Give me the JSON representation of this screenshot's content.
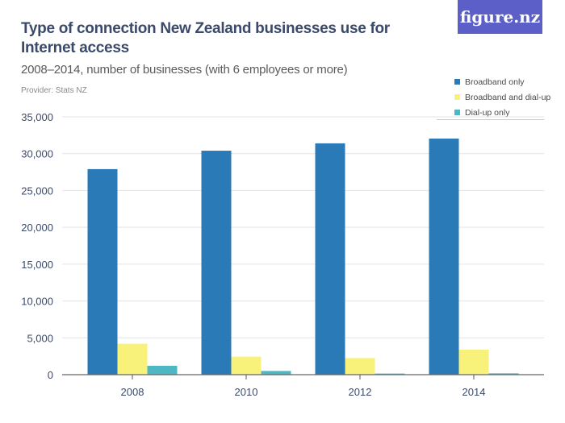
{
  "header": {
    "title": "Type of connection New Zealand businesses use for Internet access",
    "subtitle": "2008–2014, number of businesses (with 6 employees or more)",
    "provider": "Provider: Stats NZ",
    "logo": "figure.nz"
  },
  "legend": [
    {
      "label": "Broadband only",
      "color": "#2a7ab7"
    },
    {
      "label": "Broadband and dial-up",
      "color": "#f9f27a"
    },
    {
      "label": "Dial-up only",
      "color": "#4db8c4"
    }
  ],
  "chart_data": {
    "type": "bar",
    "title": "Type of connection New Zealand businesses use for Internet access",
    "subtitle": "2008–2014, number of businesses (with 6 employees or more)",
    "xlabel": "",
    "ylabel": "",
    "categories": [
      "2008",
      "2010",
      "2012",
      "2014"
    ],
    "series": [
      {
        "name": "Broadband only",
        "color": "#2a7ab7",
        "values": [
          27900,
          30400,
          31400,
          32050
        ]
      },
      {
        "name": "Broadband and dial-up",
        "color": "#f9f27a",
        "values": [
          4200,
          2450,
          2250,
          3400
        ]
      },
      {
        "name": "Dial-up only",
        "color": "#4db8c4",
        "values": [
          1200,
          500,
          150,
          180
        ]
      }
    ],
    "ylim": [
      0,
      35000
    ],
    "yticks": [
      0,
      5000,
      10000,
      15000,
      20000,
      25000,
      30000,
      35000
    ],
    "ytick_labels": [
      "0",
      "5,000",
      "10,000",
      "15,000",
      "20,000",
      "25,000",
      "30,000",
      "35,000"
    ],
    "grid": true,
    "legend_position": "top-right"
  }
}
